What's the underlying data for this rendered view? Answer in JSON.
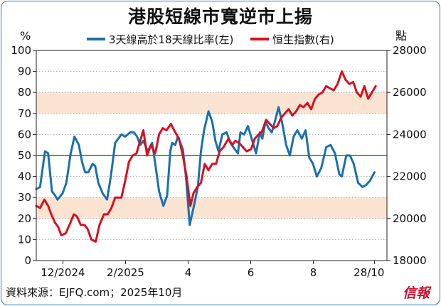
{
  "title": "港股短線市寬逆市上揚",
  "source": "資料來源：EJFQ.com；2025年10月",
  "logo": "信報",
  "chart_data": {
    "type": "line",
    "left_axis": {
      "unit": "%",
      "ylim": [
        0,
        100
      ],
      "ticks": [
        0,
        10,
        20,
        30,
        40,
        50,
        60,
        70,
        80,
        90,
        100
      ]
    },
    "right_axis": {
      "unit": "點",
      "ylim": [
        18000,
        28000
      ],
      "ticks": [
        18000,
        20000,
        22000,
        24000,
        26000,
        28000
      ]
    },
    "x_ticks": [
      "12/2024",
      "2/2025",
      "4",
      "6",
      "8",
      "28/10"
    ],
    "x_tick_positions": [
      0.125,
      1.125,
      2.125,
      3.125,
      4.125,
      5.1
    ],
    "x_range": [
      -0.3,
      5.3
    ],
    "bands_left_pct": [
      [
        20,
        30
      ],
      [
        70,
        80
      ]
    ],
    "reference_line": {
      "axis": "left",
      "value": 50,
      "color": "#3cb23c"
    },
    "series": [
      {
        "name": "3天線高於18天線比率(左)",
        "axis": "left",
        "color": "#1a6fb0",
        "x": [
          -0.3,
          -0.24,
          -0.16,
          -0.11,
          -0.05,
          0.0,
          0.04,
          0.12,
          0.18,
          0.25,
          0.31,
          0.38,
          0.43,
          0.48,
          0.53,
          0.6,
          0.64,
          0.69,
          0.76,
          0.83,
          0.89,
          0.96,
          1.06,
          1.12,
          1.2,
          1.26,
          1.31,
          1.36,
          1.41,
          1.48,
          1.55,
          1.6,
          1.66,
          1.73,
          1.79,
          1.84,
          1.87,
          1.92,
          1.96,
          2.04,
          2.09,
          2.15,
          2.21,
          2.28,
          2.33,
          2.38,
          2.45,
          2.51,
          2.56,
          2.61,
          2.67,
          2.74,
          2.8,
          2.87,
          2.92,
          2.96,
          3.02,
          3.08,
          3.15,
          3.21,
          3.27,
          3.31,
          3.36,
          3.41,
          3.46,
          3.5,
          3.57,
          3.63,
          3.69,
          3.75,
          3.81,
          3.87,
          3.94,
          4.0,
          4.06,
          4.12,
          4.18,
          4.25,
          4.33,
          4.4,
          4.47,
          4.54,
          4.58,
          4.65,
          4.71,
          4.77,
          4.84,
          4.91,
          4.97,
          5.03,
          5.1
        ],
        "y": [
          34,
          35,
          52,
          51,
          33,
          31,
          29,
          32,
          37,
          51,
          59,
          55,
          47,
          42,
          42,
          46,
          45,
          37,
          32,
          29,
          40,
          56,
          60,
          59,
          61,
          61,
          59,
          55,
          57,
          52,
          56,
          46,
          33,
          26,
          31,
          52,
          56,
          55,
          59,
          53,
          40,
          17,
          25,
          35,
          52,
          62,
          71,
          66,
          57,
          52,
          60,
          61,
          56,
          53,
          51,
          61,
          60,
          64,
          57,
          51,
          61,
          58,
          66,
          63,
          61,
          65,
          73,
          65,
          55,
          50,
          59,
          62,
          58,
          62,
          49,
          46,
          40,
          44,
          54,
          55,
          51,
          41,
          40,
          50,
          50,
          46,
          37,
          35,
          36,
          38,
          42
        ]
      },
      {
        "name": "恒生指數(右)",
        "axis": "right",
        "color": "#d6101e",
        "x": [
          -0.3,
          -0.24,
          -0.17,
          -0.11,
          -0.06,
          0.0,
          0.05,
          0.1,
          0.17,
          0.23,
          0.3,
          0.35,
          0.41,
          0.47,
          0.52,
          0.58,
          0.65,
          0.71,
          0.78,
          0.84,
          0.9,
          0.96,
          1.06,
          1.12,
          1.18,
          1.24,
          1.3,
          1.36,
          1.41,
          1.47,
          1.53,
          1.6,
          1.66,
          1.72,
          1.78,
          1.85,
          1.92,
          1.98,
          2.04,
          2.1,
          2.16,
          2.21,
          2.27,
          2.33,
          2.39,
          2.45,
          2.51,
          2.57,
          2.63,
          2.69,
          2.77,
          2.83,
          2.88,
          2.94,
          3.0,
          3.06,
          3.13,
          3.19,
          3.25,
          3.3,
          3.37,
          3.43,
          3.49,
          3.55,
          3.61,
          3.67,
          3.73,
          3.79,
          3.85,
          3.91,
          3.97,
          4.03,
          4.09,
          4.15,
          4.21,
          4.27,
          4.33,
          4.39,
          4.45,
          4.51,
          4.58,
          4.64,
          4.7,
          4.76,
          4.82,
          4.88,
          4.94,
          5.0,
          5.06,
          5.12
        ],
        "y": [
          20600,
          20500,
          20900,
          20600,
          20200,
          19800,
          19600,
          19200,
          19300,
          19700,
          20200,
          20100,
          19700,
          19700,
          19500,
          19000,
          18900,
          19700,
          20200,
          20200,
          20500,
          21000,
          21000,
          21800,
          22700,
          23000,
          23100,
          23700,
          24200,
          23000,
          23500,
          23100,
          24000,
          24300,
          24200,
          24500,
          24100,
          23800,
          23000,
          22000,
          20600,
          21200,
          21500,
          21700,
          22600,
          22300,
          22600,
          22600,
          23200,
          23400,
          23800,
          23500,
          23700,
          23600,
          23400,
          23200,
          23300,
          23800,
          24000,
          24100,
          24700,
          24500,
          24300,
          24400,
          24800,
          25000,
          25200,
          24900,
          25100,
          25400,
          25300,
          25500,
          25200,
          25700,
          25900,
          26000,
          26300,
          26200,
          26100,
          26400,
          27000,
          26600,
          26400,
          26500,
          26000,
          25800,
          26300,
          25700,
          26000,
          26300
        ]
      }
    ]
  }
}
